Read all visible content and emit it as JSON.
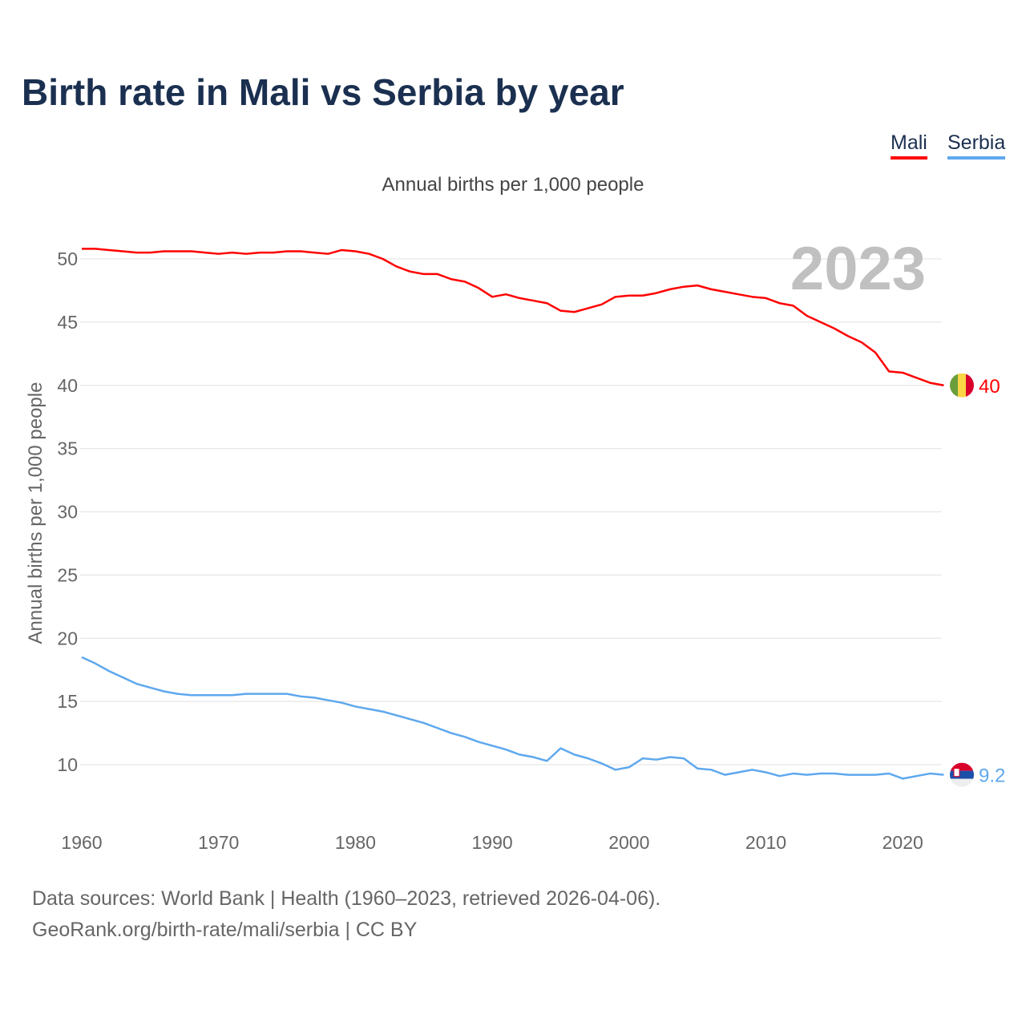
{
  "chart_data": {
    "type": "line",
    "title": "Birth rate in Mali vs Serbia by year",
    "subtitle": "Annual births per 1,000 people",
    "ylabel": "Annual births per 1,000 people",
    "xlabel": "",
    "ylim": [
      7,
      53
    ],
    "xlim": [
      1960,
      2024
    ],
    "yticks": [
      10,
      15,
      20,
      25,
      30,
      35,
      40,
      45,
      50
    ],
    "xticks": [
      1960,
      1970,
      1980,
      1990,
      2000,
      2010,
      2020
    ],
    "grid": true,
    "legend_position": "top-right",
    "year_label": "2023",
    "x": [
      1960,
      1961,
      1962,
      1963,
      1964,
      1965,
      1966,
      1967,
      1968,
      1969,
      1970,
      1971,
      1972,
      1973,
      1974,
      1975,
      1976,
      1977,
      1978,
      1979,
      1980,
      1981,
      1982,
      1983,
      1984,
      1985,
      1986,
      1987,
      1988,
      1989,
      1990,
      1991,
      1992,
      1993,
      1994,
      1995,
      1996,
      1997,
      1998,
      1999,
      2000,
      2001,
      2002,
      2003,
      2004,
      2005,
      2006,
      2007,
      2008,
      2009,
      2010,
      2011,
      2012,
      2013,
      2014,
      2015,
      2016,
      2017,
      2018,
      2019,
      2020,
      2021,
      2022,
      2023
    ],
    "series": [
      {
        "name": "Mali",
        "color": "#ff0000",
        "end_label": "40",
        "values": [
          50.8,
          50.8,
          50.7,
          50.6,
          50.5,
          50.5,
          50.6,
          50.6,
          50.6,
          50.5,
          50.4,
          50.5,
          50.4,
          50.5,
          50.5,
          50.6,
          50.6,
          50.5,
          50.4,
          50.7,
          50.6,
          50.4,
          50.0,
          49.4,
          49.0,
          48.8,
          48.8,
          48.4,
          48.2,
          47.7,
          47.0,
          47.2,
          46.9,
          46.7,
          46.5,
          45.9,
          45.8,
          46.1,
          46.4,
          47.0,
          47.1,
          47.1,
          47.3,
          47.6,
          47.8,
          47.9,
          47.6,
          47.4,
          47.2,
          47.0,
          46.9,
          46.5,
          46.3,
          45.5,
          45.0,
          44.5,
          43.9,
          43.4,
          42.6,
          41.1,
          41.0,
          40.6,
          40.2,
          40.0
        ]
      },
      {
        "name": "Serbia",
        "color": "#5ea8ee",
        "end_label": "9.2",
        "values": [
          18.5,
          18.0,
          17.4,
          16.9,
          16.4,
          16.1,
          15.8,
          15.6,
          15.5,
          15.5,
          15.5,
          15.5,
          15.6,
          15.6,
          15.6,
          15.6,
          15.4,
          15.3,
          15.1,
          14.9,
          14.6,
          14.4,
          14.2,
          13.9,
          13.6,
          13.3,
          12.9,
          12.5,
          12.2,
          11.8,
          11.5,
          11.2,
          10.8,
          10.6,
          10.3,
          11.3,
          10.8,
          10.5,
          10.1,
          9.6,
          9.8,
          10.5,
          10.4,
          10.6,
          10.5,
          9.7,
          9.6,
          9.2,
          9.4,
          9.6,
          9.4,
          9.1,
          9.3,
          9.2,
          9.3,
          9.3,
          9.2,
          9.2,
          9.2,
          9.3,
          8.9,
          9.1,
          9.3,
          9.2
        ]
      }
    ]
  },
  "footer": {
    "line1": "Data sources: World Bank | Health (1960–2023, retrieved 2026-04-06).",
    "line2": "GeoRank.org/birth-rate/mali/serbia | CC BY"
  }
}
